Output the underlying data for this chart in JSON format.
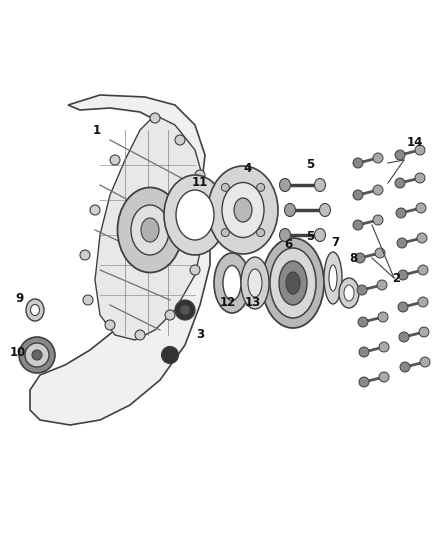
{
  "bg_color": "#ffffff",
  "fig_width": 4.38,
  "fig_height": 5.33,
  "dpi": 100,
  "color_main": "#404040",
  "color_gray": "#888888",
  "color_light": "#bbbbbb",
  "color_dark": "#222222",
  "color_mid": "#999999"
}
